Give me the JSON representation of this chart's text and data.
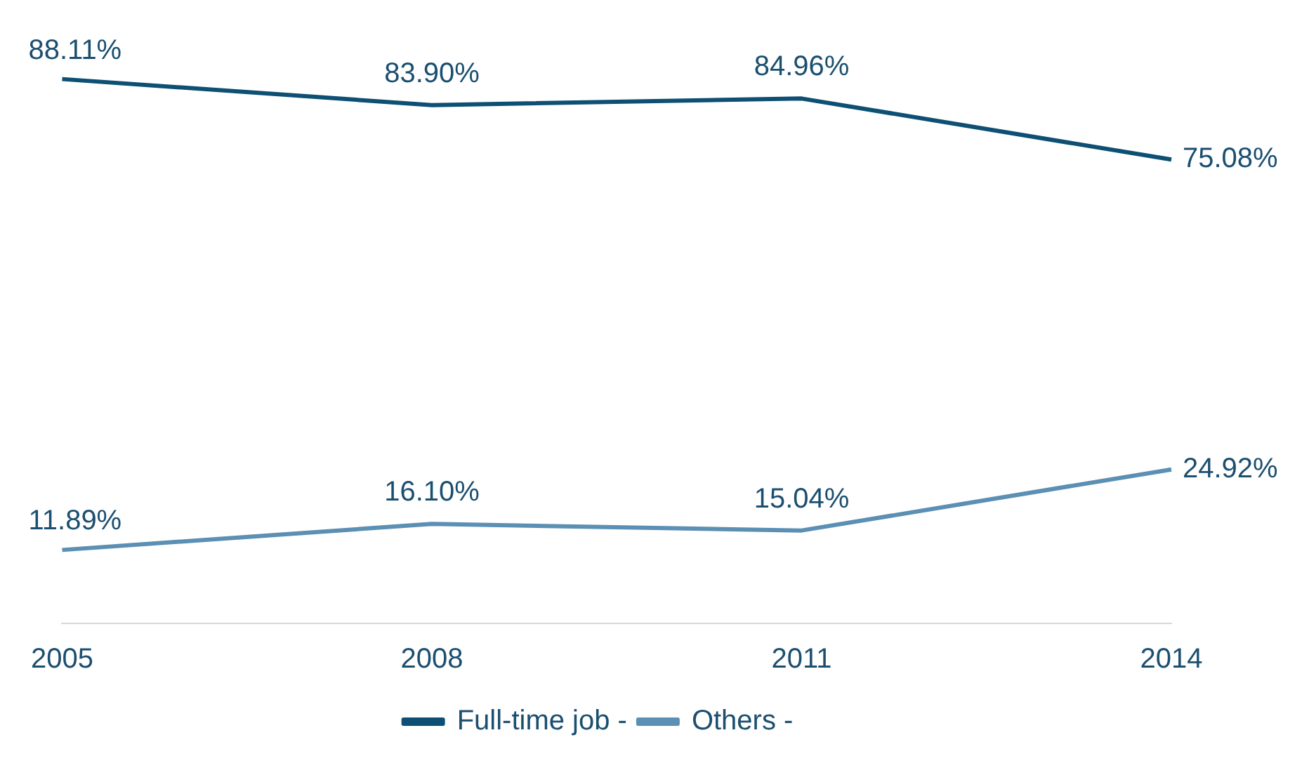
{
  "chart_data": {
    "type": "line",
    "categories": [
      "2005",
      "2008",
      "2011",
      "2014"
    ],
    "series": [
      {
        "name": "Full-time job -",
        "color": "#0e4f74",
        "values": [
          88.11,
          83.9,
          84.96,
          75.08
        ],
        "value_labels": [
          "88.11%",
          "83.90%",
          "84.96%",
          "75.08%"
        ]
      },
      {
        "name": "Others -",
        "color": "#5b8fb3",
        "values": [
          11.89,
          16.1,
          15.04,
          24.92
        ],
        "value_labels": [
          "11.89%",
          "16.10%",
          "15.04%",
          "24.92%"
        ]
      }
    ],
    "legend": "bottom",
    "grid": false,
    "marker": "none",
    "line_style": "solid"
  }
}
